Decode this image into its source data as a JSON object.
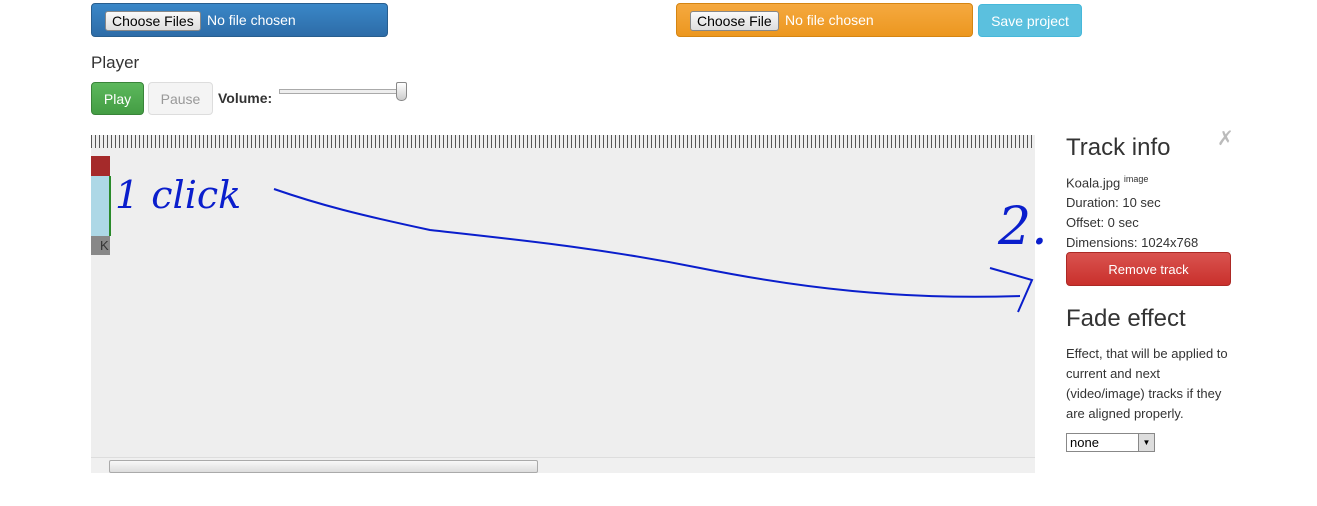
{
  "toolbar": {
    "media_input": {
      "button": "Choose Files",
      "status": "No file chosen"
    },
    "project_input": {
      "button": "Choose File",
      "status": "No file chosen"
    },
    "save_button": "Save project"
  },
  "player": {
    "title": "Player",
    "play": "Play",
    "pause": "Pause",
    "volume_label": "Volume:"
  },
  "timeline": {
    "track_label": "K",
    "annotations": [
      "1 click",
      "2."
    ]
  },
  "track_info": {
    "close": "✗",
    "title": "Track info",
    "file_name": "Koala.jpg",
    "file_type": "image",
    "lines": [
      "Duration: 10 sec",
      "Offset: 0 sec",
      "Dimensions: 1024x768"
    ],
    "remove_button": "Remove track"
  },
  "fade_effect": {
    "title": "Fade effect",
    "description": "Effect, that will be applied to current and next (video/image) tracks if they are aligned properly.",
    "select_value": "none"
  }
}
